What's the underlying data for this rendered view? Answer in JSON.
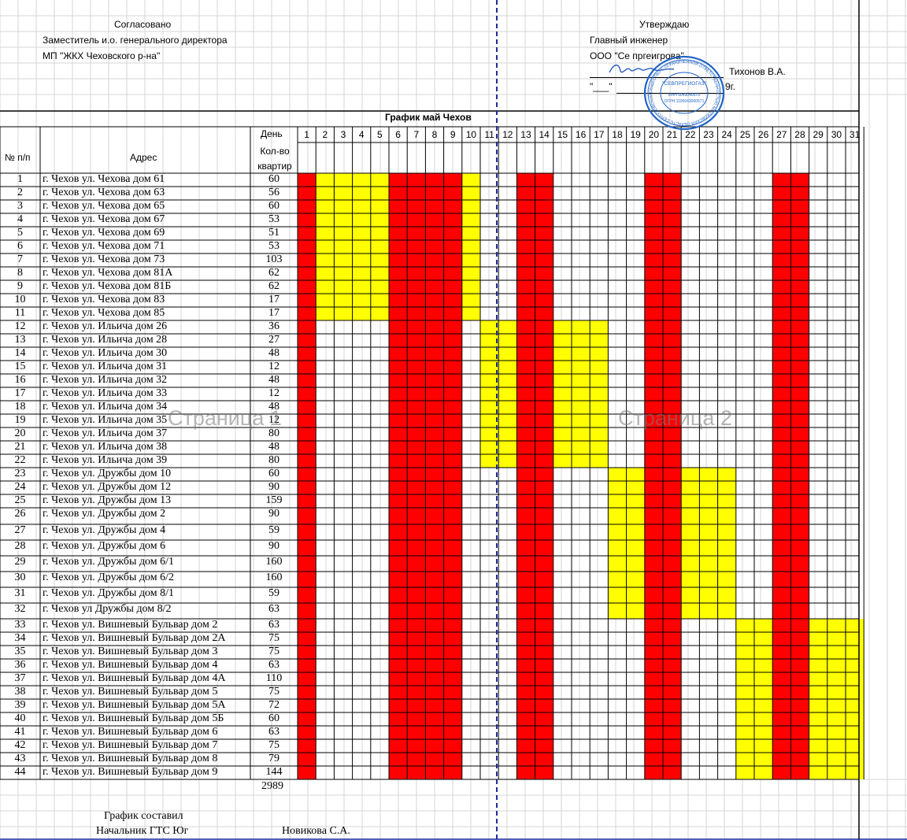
{
  "header": {
    "left": {
      "title": "Согласовано",
      "line1": "Заместитель и.о. генерального директора",
      "line2": "МП \"ЖКХ Чеховского р-на\""
    },
    "right": {
      "title": "Утверждаю",
      "line1": "Главный инженер",
      "line2": "ООО \"Се  пргеигрова\"",
      "signer": "Тихонов В.А.",
      "date_prefix": "\"___\"",
      "date_suffix": "9г."
    }
  },
  "stamp": {
    "center_text": "\"СЕВПРЕГИОГАЗ\"",
    "ring_text": "ОБЩЕСТВО С ОГРАНИЧЕННОЙ ОТВЕТСТВЕННОСТЬЮ МОСКОВСКАЯ ОБЛАСТЬ СЕРПУХОВСКИЙ РАЙОН",
    "inn": "ИНН 5043040575",
    "ogrn": "ОГРН 1105043000571",
    "color": "#1f63c8"
  },
  "table": {
    "title": "График май Чехов",
    "col_num": "№ п/п",
    "col_address": "Адрес",
    "col_day": "День",
    "col_count": "Кол-во квартир",
    "days": [
      "1",
      "2",
      "3",
      "4",
      "5",
      "6",
      "7",
      "8",
      "9",
      "10",
      "11",
      "12",
      "13",
      "14",
      "15",
      "16",
      "17",
      "18",
      "19",
      "20",
      "21",
      "22",
      "23",
      "24",
      "25",
      "26",
      "27",
      "28",
      "29",
      "30",
      "31"
    ],
    "rows": [
      {
        "n": "1",
        "addr": "г. Чехов ул. Чехова дом 61",
        "count": "60"
      },
      {
        "n": "2",
        "addr": "г. Чехов ул. Чехова дом 63",
        "count": "56"
      },
      {
        "n": "3",
        "addr": "г. Чехов ул. Чехова дом 65",
        "count": "60"
      },
      {
        "n": "4",
        "addr": "г. Чехов ул. Чехова дом 67",
        "count": "53"
      },
      {
        "n": "5",
        "addr": "г. Чехов ул. Чехова дом 69",
        "count": "51"
      },
      {
        "n": "6",
        "addr": "г. Чехов ул. Чехова дом 71",
        "count": "53"
      },
      {
        "n": "7",
        "addr": "г. Чехов ул. Чехова дом 73",
        "count": "103"
      },
      {
        "n": "8",
        "addr": "г. Чехов ул. Чехова дом 81А",
        "count": "62"
      },
      {
        "n": "9",
        "addr": "г. Чехов ул. Чехова дом 81Б",
        "count": "62"
      },
      {
        "n": "10",
        "addr": "г. Чехов ул. Чехова дом 83",
        "count": "17"
      },
      {
        "n": "11",
        "addr": "г. Чехов ул. Чехова дом 85",
        "count": "17"
      },
      {
        "n": "12",
        "addr": "г. Чехов ул. Ильича дом 26",
        "count": "36"
      },
      {
        "n": "13",
        "addr": "г. Чехов ул. Ильича дом 28",
        "count": "27"
      },
      {
        "n": "14",
        "addr": "г. Чехов ул. Ильича дом 30",
        "count": "48"
      },
      {
        "n": "15",
        "addr": "г. Чехов ул. Ильича дом 31",
        "count": "12"
      },
      {
        "n": "16",
        "addr": "г. Чехов ул. Ильича дом 32",
        "count": "48"
      },
      {
        "n": "17",
        "addr": "г. Чехов ул. Ильича дом 33",
        "count": "12"
      },
      {
        "n": "18",
        "addr": "г. Чехов ул. Ильича дом 34",
        "count": "48"
      },
      {
        "n": "19",
        "addr": "г. Чехов ул. Ильича дом 35",
        "count": "12"
      },
      {
        "n": "20",
        "addr": "г. Чехов ул. Ильича дом 37",
        "count": "80"
      },
      {
        "n": "21",
        "addr": "г. Чехов ул. Ильича дом 38",
        "count": "48"
      },
      {
        "n": "22",
        "addr": "г. Чехов ул. Ильича дом 39",
        "count": "80"
      },
      {
        "n": "23",
        "addr": "г. Чехов ул. Дружбы дом 10",
        "count": "60"
      },
      {
        "n": "24",
        "addr": "г. Чехов ул. Дружбы дом 12",
        "count": "90"
      },
      {
        "n": "25",
        "addr": "г. Чехов ул. Дружбы дом 13",
        "count": "159"
      },
      {
        "n": "26",
        "addr": "г. Чехов ул. Дружбы дом 2",
        "count": "90"
      },
      {
        "n": "27",
        "addr": "г. Чехов ул. Дружбы дом 4",
        "count": "59"
      },
      {
        "n": "28",
        "addr": "г. Чехов ул. Дружбы дом 6",
        "count": "90"
      },
      {
        "n": "29",
        "addr": "г. Чехов ул. Дружбы дом 6/1",
        "count": "160"
      },
      {
        "n": "30",
        "addr": "г. Чехов ул. Дружбы дом 6/2",
        "count": "160"
      },
      {
        "n": "31",
        "addr": "г. Чехов ул. Дружбы дом 8/1",
        "count": "59"
      },
      {
        "n": "32",
        "addr": "г. Чехов ул Дружбы дом 8/2",
        "count": "63"
      },
      {
        "n": "33",
        "addr": "г. Чехов ул. Вишневый Бульвар дом 2",
        "count": "63"
      },
      {
        "n": "34",
        "addr": "г. Чехов ул. Вишневый Бульвар дом 2А",
        "count": "75"
      },
      {
        "n": "35",
        "addr": "г. Чехов ул. Вишневый Бульвар дом 3",
        "count": "75"
      },
      {
        "n": "36",
        "addr": "г. Чехов ул. Вишневый Бульвар дом 4",
        "count": "63"
      },
      {
        "n": "37",
        "addr": "г. Чехов ул. Вишневый Бульвар дом 4А",
        "count": "110"
      },
      {
        "n": "38",
        "addr": "г. Чехов ул. Вишневый Бульвар дом 5",
        "count": "75"
      },
      {
        "n": "39",
        "addr": "г. Чехов ул. Вишневый Бульвар дом 5А",
        "count": "72"
      },
      {
        "n": "40",
        "addr": "г. Чехов ул. Вишневый Бульвар дом 5Б",
        "count": "60"
      },
      {
        "n": "41",
        "addr": "г. Чехов ул. Вишневый Бульвар дом 6",
        "count": "63"
      },
      {
        "n": "42",
        "addr": "г. Чехов ул. Вишневый Бульвар дом 7",
        "count": "75"
      },
      {
        "n": "43",
        "addr": "г. Чехов ул. Вишневый Бульвар дом 8",
        "count": "79"
      },
      {
        "n": "44",
        "addr": "г. Чехов ул. Вишневый Бульвар дом 9",
        "count": "144"
      }
    ],
    "total": "2989",
    "schedule_colors": {
      "red": "#ff0000",
      "yellow": "#ffff00"
    },
    "red_days": [
      1,
      6,
      7,
      8,
      9,
      13,
      14,
      20,
      21,
      27,
      28
    ],
    "yellow_groups": [
      {
        "rows_from": 1,
        "rows_to": 11,
        "days": [
          2,
          3,
          4,
          5,
          10
        ]
      },
      {
        "rows_from": 12,
        "rows_to": 22,
        "days": [
          11,
          12,
          15,
          16,
          17
        ]
      },
      {
        "rows_from": 23,
        "rows_to": 32,
        "days": [
          18,
          19,
          22,
          23,
          24
        ]
      },
      {
        "rows_from": 33,
        "rows_to": 44,
        "days": [
          25,
          26,
          29,
          30,
          31
        ]
      }
    ]
  },
  "watermarks": {
    "page1": "Страница 1",
    "page2": "Страница 2"
  },
  "footer": {
    "composed": "График составил",
    "position": "Начальник ГТС Юг",
    "name": "Новикова С.А."
  }
}
